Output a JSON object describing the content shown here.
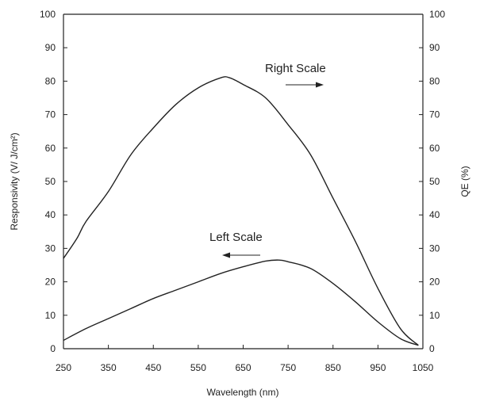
{
  "chart_data": {
    "type": "line",
    "xlabel": "Wavelength  (nm)",
    "ylabel_left": "Responsivity  (V/  J/cm²)",
    "ylabel_right": "QE (%)",
    "xlim": [
      250,
      1050
    ],
    "ylim_left": [
      0,
      100
    ],
    "ylim_right": [
      0,
      100
    ],
    "grid": false,
    "x_ticks": [
      250,
      350,
      450,
      550,
      650,
      750,
      850,
      950,
      1050
    ],
    "x_tick_labels": [
      "250",
      "350",
      "450",
      "550",
      "650",
      "750",
      "850",
      "950",
      "1050"
    ],
    "y_ticks": [
      0,
      10,
      20,
      30,
      40,
      50,
      60,
      70,
      80,
      90,
      100
    ],
    "y_tick_labels": [
      "0",
      "10",
      "20",
      "30",
      "40",
      "50",
      "60",
      "70",
      "80",
      "90",
      "100"
    ],
    "series": [
      {
        "name": "Right Scale",
        "axis": "right",
        "x": [
          250,
          280,
          300,
          350,
          400,
          450,
          500,
          550,
          600,
          620,
          650,
          700,
          750,
          800,
          850,
          900,
          950,
          1000,
          1040
        ],
        "y": [
          27,
          33,
          38,
          47,
          58,
          66,
          73,
          78,
          81,
          81,
          79,
          75,
          67,
          58,
          45,
          32,
          18,
          6,
          1
        ]
      },
      {
        "name": "Left Scale",
        "axis": "left",
        "x": [
          250,
          300,
          350,
          400,
          450,
          500,
          550,
          600,
          650,
          700,
          730,
          750,
          800,
          850,
          900,
          950,
          1000,
          1040
        ],
        "y": [
          2.5,
          6,
          9,
          12,
          15,
          17.5,
          20,
          22.5,
          24.5,
          26.2,
          26.5,
          26,
          24,
          19.5,
          14,
          8,
          3,
          1
        ]
      }
    ],
    "annotations": [
      {
        "text": "Right Scale",
        "direction": "right"
      },
      {
        "text": "Left Scale",
        "direction": "left"
      }
    ]
  }
}
